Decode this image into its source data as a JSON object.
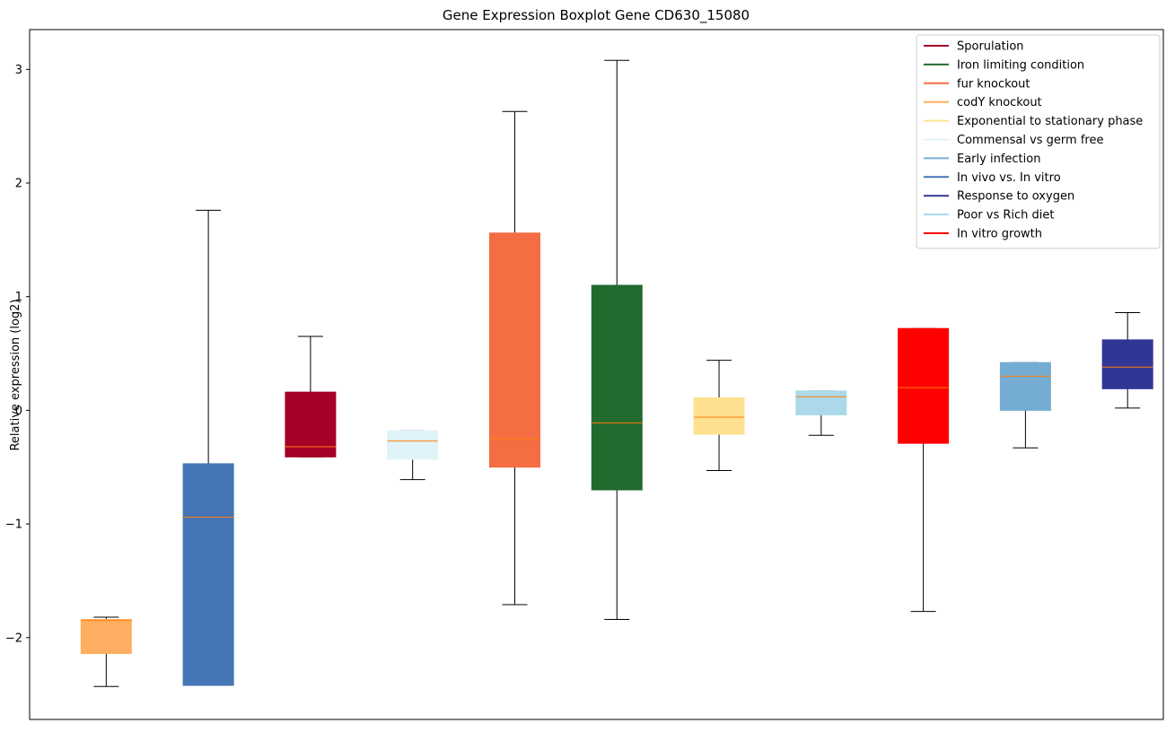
{
  "chart_data": {
    "type": "boxplot",
    "title": "Gene Expression Boxplot Gene CD630_15080",
    "xlabel": "",
    "ylabel": "Relative expression (log2)",
    "ylim": [
      -2.72,
      3.35
    ],
    "yticks": [
      -2,
      -1,
      0,
      1,
      2,
      3
    ],
    "ytick_labels": [
      "−2",
      "−1",
      "0",
      "1",
      "2",
      "3"
    ],
    "grid": false,
    "legend_position": "top-right",
    "median_color": "#ff7f0e",
    "series": [
      {
        "name": "Sporulation",
        "color": "#a50026"
      },
      {
        "name": "Iron limiting condition",
        "color": "#226a2e"
      },
      {
        "name": "fur knockout",
        "color": "#f46d43"
      },
      {
        "name": "codY knockout",
        "color": "#fdae61"
      },
      {
        "name": "Exponential to stationary phase",
        "color": "#fee090"
      },
      {
        "name": "Commensal vs germ free",
        "color": "#e0f3f8"
      },
      {
        "name": "Early infection",
        "color": "#74add1"
      },
      {
        "name": "In vivo vs. In vitro",
        "color": "#4575b4"
      },
      {
        "name": "Response to oxygen",
        "color": "#313695"
      },
      {
        "name": "Poor vs Rich diet",
        "color": "#abd9e9"
      },
      {
        "name": "In vitro growth",
        "color": "#ff0000"
      }
    ],
    "boxes": [
      {
        "series": "codY knockout",
        "color": "#fdae61",
        "whisker_low": -2.43,
        "q1": -2.14,
        "median": -1.85,
        "q3": -1.84,
        "whisker_high": -1.82
      },
      {
        "series": "In vivo vs. In vitro",
        "color": "#4575b4",
        "whisker_low": -2.42,
        "q1": -2.42,
        "median": -0.94,
        "q3": -0.47,
        "whisker_high": 1.76
      },
      {
        "series": "Sporulation",
        "color": "#a50026",
        "whisker_low": -0.41,
        "q1": -0.41,
        "median": -0.32,
        "q3": 0.16,
        "whisker_high": 0.65
      },
      {
        "series": "Commensal vs germ free",
        "color": "#e0f3f8",
        "whisker_low": -0.61,
        "q1": -0.43,
        "median": -0.27,
        "q3": -0.18,
        "whisker_high": -0.18
      },
      {
        "series": "fur knockout",
        "color": "#f46d43",
        "whisker_low": -1.71,
        "q1": -0.5,
        "median": -0.25,
        "q3": 1.56,
        "whisker_high": 2.63
      },
      {
        "series": "Iron limiting condition",
        "color": "#226a2e",
        "whisker_low": -1.84,
        "q1": -0.7,
        "median": -0.11,
        "q3": 1.1,
        "whisker_high": 3.08
      },
      {
        "series": "Exponential to stationary phase",
        "color": "#fee090",
        "whisker_low": -0.53,
        "q1": -0.21,
        "median": -0.06,
        "q3": 0.11,
        "whisker_high": 0.44
      },
      {
        "series": "Poor vs Rich diet",
        "color": "#abd9e9",
        "whisker_low": -0.22,
        "q1": -0.04,
        "median": 0.12,
        "q3": 0.17,
        "whisker_high": 0.17
      },
      {
        "series": "In vitro growth",
        "color": "#ff0000",
        "whisker_low": -1.77,
        "q1": -0.29,
        "median": 0.2,
        "q3": 0.72,
        "whisker_high": 0.72
      },
      {
        "series": "Early infection",
        "color": "#74add1",
        "whisker_low": -0.33,
        "q1": 0.0,
        "median": 0.3,
        "q3": 0.42,
        "whisker_high": 0.42
      },
      {
        "series": "Response to oxygen",
        "color": "#313695",
        "whisker_low": 0.02,
        "q1": 0.19,
        "median": 0.38,
        "q3": 0.62,
        "whisker_high": 0.86
      }
    ]
  }
}
